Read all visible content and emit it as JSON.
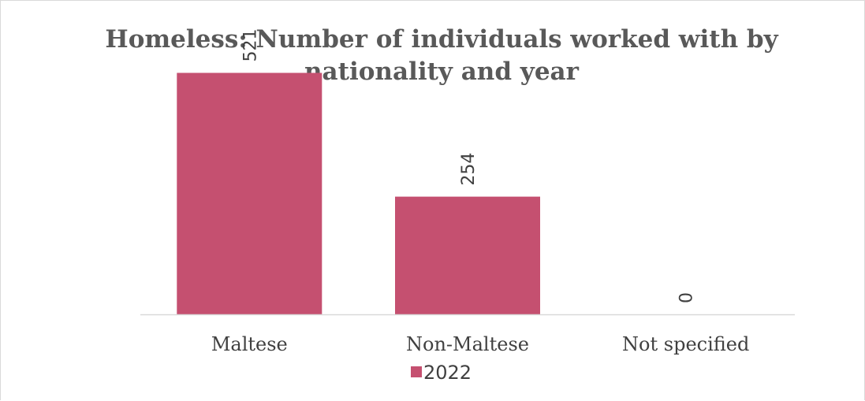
{
  "chart_data": {
    "type": "bar",
    "title_lines": [
      "Homeless: Number of individuals worked with by",
      "nationality and year"
    ],
    "categories": [
      "Maltese",
      "Non-Maltese",
      "Not specified"
    ],
    "series": [
      {
        "name": "2022",
        "values": [
          521,
          254,
          0
        ],
        "color": "#c55070"
      }
    ],
    "ylim": [
      0,
      600
    ],
    "grid": false,
    "legend_position": "bottom",
    "data_labels": true
  }
}
